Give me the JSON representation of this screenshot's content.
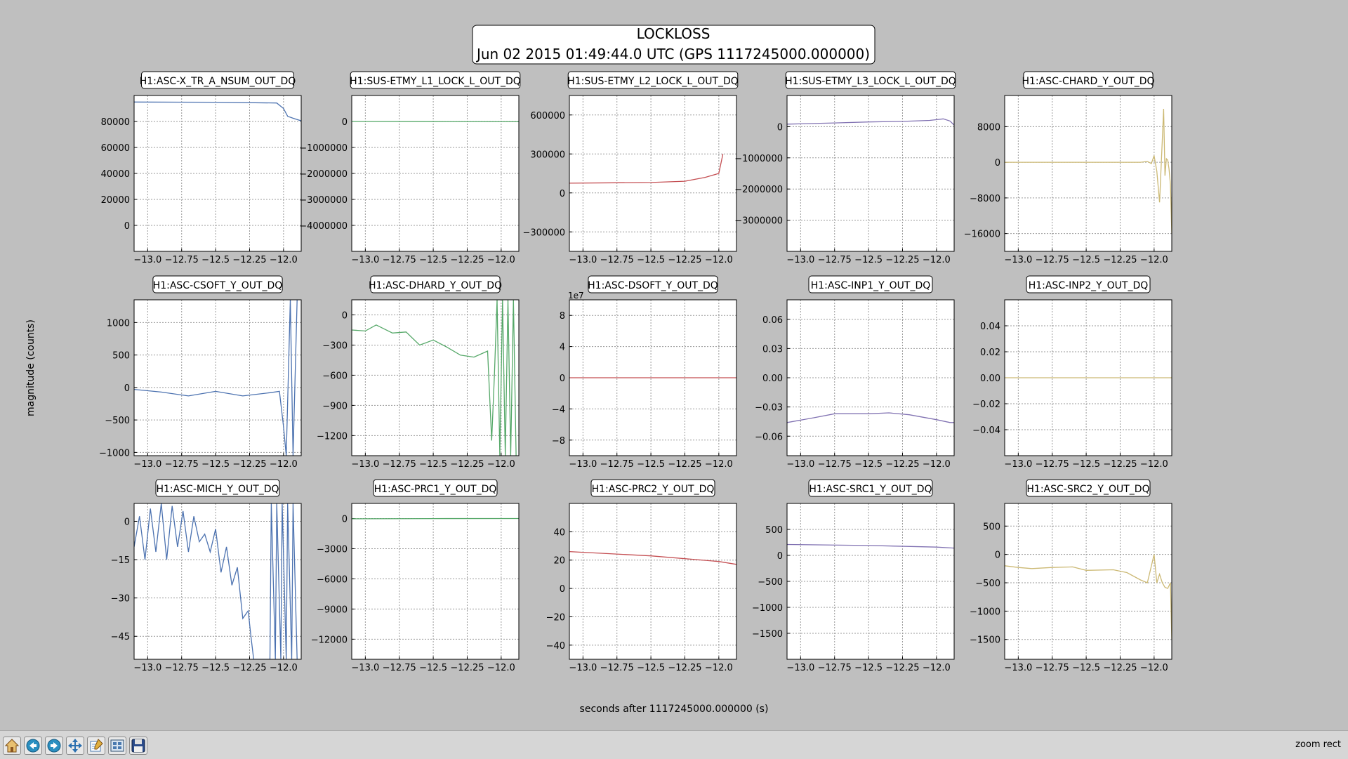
{
  "figure": {
    "title_line1": "LOCKLOSS",
    "title_line2": "Jun 02 2015 01:49:44.0 UTC (GPS 1117245000.000000)",
    "ylabel": "magnitude (counts)",
    "xlabel": "seconds after 1117245000.000000 (s)"
  },
  "toolbar": {
    "buttons": [
      {
        "name": "home-button",
        "icon": "home-icon"
      },
      {
        "name": "back-button",
        "icon": "arrow-left-icon"
      },
      {
        "name": "forward-button",
        "icon": "arrow-right-icon"
      },
      {
        "name": "pan-button",
        "icon": "move-arrows-icon"
      },
      {
        "name": "zoom-button",
        "icon": "edit-zoom-icon"
      },
      {
        "name": "subplots-button",
        "icon": "subplots-icon"
      },
      {
        "name": "save-button",
        "icon": "floppy-disk-icon"
      }
    ],
    "status": "zoom rect"
  },
  "chart_data": [
    {
      "type": "line",
      "title": "H1:ASC-X_TR_A_NSUM_OUT_DQ",
      "color": "#4c72b0",
      "xlim": [
        -13.1,
        -11.87
      ],
      "ylim": [
        -20000,
        100000
      ],
      "yticks": [
        0,
        20000,
        40000,
        60000,
        80000
      ],
      "ytick_labels": [
        "0",
        "20000",
        "40000",
        "60000",
        "80000"
      ],
      "y_offset_label": "",
      "series": [
        {
          "x": [
            -13.1,
            -12.5,
            -12.05,
            -12.0,
            -11.97,
            -11.93,
            -11.87
          ],
          "y": [
            95000,
            94800,
            94200,
            90000,
            84000,
            82500,
            80500
          ]
        }
      ]
    },
    {
      "type": "line",
      "title": "H1:SUS-ETMY_L1_LOCK_L_OUT_DQ",
      "color": "#55a868",
      "xlim": [
        -13.1,
        -11.87
      ],
      "ylim": [
        -5000000,
        1000000
      ],
      "yticks": [
        0,
        -1000000,
        -2000000,
        -3000000,
        -4000000
      ],
      "ytick_labels": [
        "0",
        "-1000000",
        "-2000000",
        "-3000000",
        "-4000000"
      ],
      "y_offset_label": "",
      "series": [
        {
          "x": [
            -13.1,
            -12.5,
            -11.87
          ],
          "y": [
            0,
            -5000,
            -10000
          ]
        }
      ]
    },
    {
      "type": "line",
      "title": "H1:SUS-ETMY_L2_LOCK_L_OUT_DQ",
      "color": "#c44e52",
      "xlim": [
        -13.1,
        -11.87
      ],
      "ylim": [
        -450000,
        750000
      ],
      "yticks": [
        600000,
        300000,
        0,
        -300000
      ],
      "ytick_labels": [
        "600000",
        "300000",
        "0",
        "-300000"
      ],
      "y_offset_label": "",
      "series": [
        {
          "x": [
            -13.1,
            -12.75,
            -12.5,
            -12.25,
            -12.1,
            -12.0,
            -11.97
          ],
          "y": [
            75000,
            78000,
            80000,
            90000,
            120000,
            150000,
            300000
          ]
        }
      ]
    },
    {
      "type": "line",
      "title": "H1:SUS-ETMY_L3_LOCK_L_OUT_DQ",
      "color": "#8172b2",
      "xlim": [
        -13.1,
        -11.87
      ],
      "ylim": [
        -4000000,
        1000000
      ],
      "yticks": [
        0,
        -1000000,
        -2000000,
        -3000000
      ],
      "ytick_labels": [
        "0",
        "-1000000",
        "-2000000",
        "-3000000"
      ],
      "y_offset_label": "",
      "series": [
        {
          "x": [
            -13.1,
            -12.75,
            -12.5,
            -12.25,
            -12.05,
            -11.95,
            -11.9,
            -11.87
          ],
          "y": [
            80000,
            120000,
            150000,
            170000,
            200000,
            250000,
            180000,
            50000
          ]
        }
      ]
    },
    {
      "type": "line",
      "title": "H1:ASC-CHARD_Y_OUT_DQ",
      "color": "#ccb974",
      "xlim": [
        -13.1,
        -11.87
      ],
      "ylim": [
        -20000,
        15000
      ],
      "yticks": [
        8000,
        0,
        -8000,
        -16000
      ],
      "ytick_labels": [
        "8000",
        "0",
        "-8000",
        "-16000"
      ],
      "y_offset_label": "",
      "series": [
        {
          "x": [
            -13.1,
            -12.5,
            -12.1,
            -12.05,
            -12.02,
            -12.0,
            -11.98,
            -11.96,
            -11.94,
            -11.93,
            -11.92,
            -11.91,
            -11.9,
            -11.89,
            -11.88,
            -11.87
          ],
          "y": [
            0,
            0,
            0,
            200,
            -300,
            1500,
            -2000,
            -9000,
            5000,
            12000,
            -3000,
            800,
            500,
            -1500,
            -5000,
            -16000
          ]
        }
      ]
    },
    {
      "type": "line",
      "title": "H1:ASC-CSOFT_Y_OUT_DQ",
      "color": "#4c72b0",
      "xlim": [
        -13.1,
        -11.87
      ],
      "ylim": [
        -1050,
        1350
      ],
      "yticks": [
        1000,
        500,
        0,
        -500,
        -1000
      ],
      "ytick_labels": [
        "1000",
        "500",
        "0",
        "-500",
        "-1000"
      ],
      "y_offset_label": "",
      "series": [
        {
          "x": [
            -13.1,
            -12.9,
            -12.7,
            -12.5,
            -12.3,
            -12.1,
            -12.03,
            -12.0,
            -11.98,
            -11.95,
            -11.93,
            -11.9
          ],
          "y": [
            -30,
            -70,
            -130,
            -60,
            -130,
            -80,
            -60,
            -600,
            -1050,
            1350,
            -1050,
            1350
          ]
        }
      ]
    },
    {
      "type": "line",
      "title": "H1:ASC-DHARD_Y_OUT_DQ",
      "color": "#55a868",
      "xlim": [
        -13.1,
        -11.87
      ],
      "ylim": [
        -1400,
        150
      ],
      "yticks": [
        0,
        -300,
        -600,
        -900,
        -1200
      ],
      "ytick_labels": [
        "0",
        "-300",
        "-600",
        "-900",
        "-1200"
      ],
      "y_offset_label": "",
      "series": [
        {
          "x": [
            -13.1,
            -13.0,
            -12.92,
            -12.8,
            -12.7,
            -12.6,
            -12.5,
            -12.4,
            -12.3,
            -12.2,
            -12.1,
            -12.07,
            -12.05,
            -12.03,
            -12.01,
            -11.99,
            -11.97,
            -11.95,
            -11.93,
            -11.91,
            -11.89
          ],
          "y": [
            -150,
            -160,
            -100,
            -180,
            -170,
            -300,
            -250,
            -320,
            -400,
            -420,
            -360,
            -1250,
            -600,
            150,
            -1400,
            150,
            -1400,
            150,
            -1400,
            150,
            -1400
          ]
        }
      ]
    },
    {
      "type": "line",
      "title": "H1:ASC-DSOFT_Y_OUT_DQ",
      "color": "#c44e52",
      "xlim": [
        -13.1,
        -11.87
      ],
      "ylim": [
        -10,
        10
      ],
      "yticks": [
        8,
        4,
        0,
        -4,
        -8
      ],
      "ytick_labels": [
        "8",
        "4",
        "0",
        "-4",
        "-8"
      ],
      "y_offset_label": "1e7",
      "series": [
        {
          "x": [
            -13.1,
            -11.87
          ],
          "y": [
            0,
            0
          ]
        }
      ]
    },
    {
      "type": "line",
      "title": "H1:ASC-INP1_Y_OUT_DQ",
      "color": "#8172b2",
      "xlim": [
        -13.1,
        -11.87
      ],
      "ylim": [
        -0.08,
        0.08
      ],
      "yticks": [
        0.06,
        0.03,
        0.0,
        -0.03,
        -0.06
      ],
      "ytick_labels": [
        "0.06",
        "0.03",
        "0.00",
        "-0.03",
        "-0.06"
      ],
      "y_offset_label": "",
      "series": [
        {
          "x": [
            -13.1,
            -12.9,
            -12.75,
            -12.5,
            -12.35,
            -12.2,
            -12.0,
            -11.9,
            -11.87
          ],
          "y": [
            -0.046,
            -0.041,
            -0.037,
            -0.037,
            -0.036,
            -0.038,
            -0.043,
            -0.046,
            -0.046
          ]
        }
      ]
    },
    {
      "type": "line",
      "title": "H1:ASC-INP2_Y_OUT_DQ",
      "color": "#ccb974",
      "xlim": [
        -13.1,
        -11.87
      ],
      "ylim": [
        -0.06,
        0.06
      ],
      "yticks": [
        0.04,
        0.02,
        0.0,
        -0.02,
        -0.04
      ],
      "ytick_labels": [
        "0.04",
        "0.02",
        "0.00",
        "-0.02",
        "-0.04"
      ],
      "y_offset_label": "",
      "series": [
        {
          "x": [
            -13.1,
            -11.87
          ],
          "y": [
            0,
            0
          ]
        }
      ]
    },
    {
      "type": "line",
      "title": "H1:ASC-MICH_Y_OUT_DQ",
      "color": "#4c72b0",
      "xlim": [
        -13.1,
        -11.87
      ],
      "ylim": [
        -54,
        7
      ],
      "yticks": [
        0,
        -15,
        -30,
        -45
      ],
      "ytick_labels": [
        "0",
        "-15",
        "-30",
        "-45"
      ],
      "y_offset_label": "",
      "series": [
        {
          "x": [
            -13.1,
            -13.06,
            -13.02,
            -12.98,
            -12.94,
            -12.9,
            -12.86,
            -12.82,
            -12.78,
            -12.74,
            -12.7,
            -12.66,
            -12.62,
            -12.58,
            -12.54,
            -12.5,
            -12.46,
            -12.42,
            -12.38,
            -12.34,
            -12.3,
            -12.26,
            -12.24,
            -12.22,
            -12.2,
            -12.1,
            -12.09,
            -12.06,
            -12.05,
            -12.02,
            -12.01,
            -11.98,
            -11.97,
            -11.94,
            -11.93,
            -11.9
          ],
          "y": [
            -10,
            2,
            -15,
            5,
            -12,
            7,
            -15,
            6,
            -10,
            4,
            -12,
            2,
            -8,
            -5,
            -12,
            -3,
            -20,
            -10,
            -25,
            -18,
            -38,
            -35,
            -45,
            -54,
            -54,
            -54,
            7,
            -54,
            7,
            -54,
            7,
            -54,
            7,
            -54,
            7,
            -54
          ]
        }
      ]
    },
    {
      "type": "line",
      "title": "H1:ASC-PRC1_Y_OUT_DQ",
      "color": "#55a868",
      "xlim": [
        -13.1,
        -11.87
      ],
      "ylim": [
        -14000,
        1500
      ],
      "yticks": [
        0,
        -3000,
        -6000,
        -9000,
        -12000
      ],
      "ytick_labels": [
        "0",
        "-3000",
        "-6000",
        "-9000",
        "-12000"
      ],
      "y_offset_label": "",
      "series": [
        {
          "x": [
            -13.1,
            -12.5,
            -11.87
          ],
          "y": [
            -30,
            -10,
            0
          ]
        }
      ]
    },
    {
      "type": "line",
      "title": "H1:ASC-PRC2_Y_OUT_DQ",
      "color": "#c44e52",
      "xlim": [
        -13.1,
        -11.87
      ],
      "ylim": [
        -50,
        60
      ],
      "yticks": [
        40,
        20,
        0,
        -20,
        -40
      ],
      "ytick_labels": [
        "40",
        "20",
        "0",
        "-20",
        "-40"
      ],
      "y_offset_label": "",
      "series": [
        {
          "x": [
            -13.1,
            -12.5,
            -12.0,
            -11.87
          ],
          "y": [
            26,
            23,
            19,
            17
          ]
        }
      ]
    },
    {
      "type": "line",
      "title": "H1:ASC-SRC1_Y_OUT_DQ",
      "color": "#8172b2",
      "xlim": [
        -13.1,
        -11.87
      ],
      "ylim": [
        -2000,
        1000
      ],
      "yticks": [
        500,
        0,
        -500,
        -1000,
        -1500
      ],
      "ytick_labels": [
        "500",
        "0",
        "-500",
        "-1000",
        "-1500"
      ],
      "y_offset_label": "",
      "series": [
        {
          "x": [
            -13.1,
            -12.5,
            -12.0,
            -11.87
          ],
          "y": [
            210,
            190,
            160,
            140
          ]
        }
      ]
    },
    {
      "type": "line",
      "title": "H1:ASC-SRC2_Y_OUT_DQ",
      "color": "#ccb974",
      "xlim": [
        -13.1,
        -11.87
      ],
      "ylim": [
        -1850,
        900
      ],
      "yticks": [
        500,
        0,
        -500,
        -1000,
        -1500
      ],
      "ytick_labels": [
        "500",
        "0",
        "-500",
        "-1000",
        "-1500"
      ],
      "y_offset_label": "",
      "series": [
        {
          "x": [
            -13.1,
            -13.0,
            -12.9,
            -12.75,
            -12.6,
            -12.5,
            -12.3,
            -12.2,
            -12.1,
            -12.05,
            -12.02,
            -12.0,
            -11.98,
            -11.96,
            -11.94,
            -11.92,
            -11.9,
            -11.88,
            -11.87
          ],
          "y": [
            -200,
            -230,
            -250,
            -230,
            -220,
            -280,
            -270,
            -320,
            -450,
            -500,
            -200,
            0,
            -500,
            -350,
            -500,
            -580,
            -600,
            -500,
            -1500
          ]
        }
      ]
    }
  ]
}
